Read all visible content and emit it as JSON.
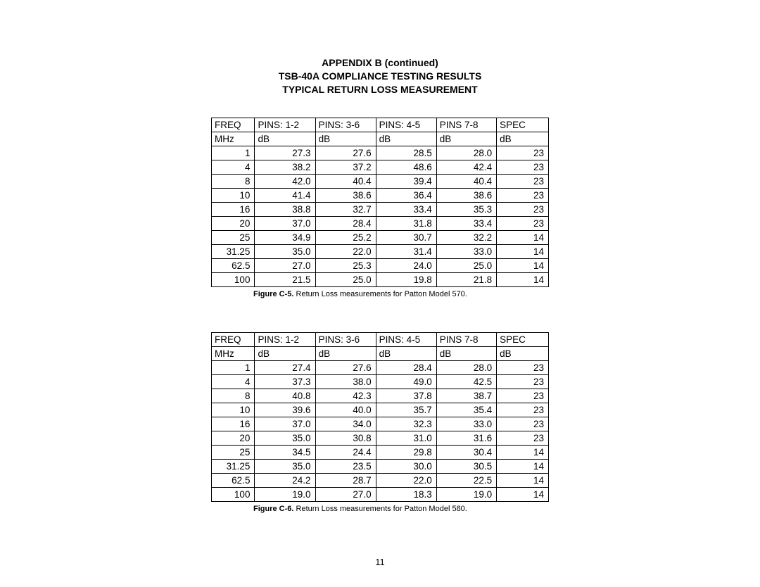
{
  "header": {
    "line1": "APPENDIX B (continued)",
    "line2": "TSB-40A COMPLIANCE TESTING RESULTS",
    "line3": "TYPICAL RETURN LOSS MEASUREMENT"
  },
  "table1": {
    "type": "table",
    "columns_row1": [
      "FREQ",
      "PINS: 1-2",
      "PINS: 3-6",
      "PINS: 4-5",
      "PINS 7-8",
      "SPEC"
    ],
    "columns_row2": [
      "MHz",
      "dB",
      "dB",
      "dB",
      "dB",
      "dB"
    ],
    "rows": [
      [
        "1",
        "27.3",
        "27.6",
        "28.5",
        "28.0",
        "23"
      ],
      [
        "4",
        "38.2",
        "37.2",
        "48.6",
        "42.4",
        "23"
      ],
      [
        "8",
        "42.0",
        "40.4",
        "39.4",
        "40.4",
        "23"
      ],
      [
        "10",
        "41.4",
        "38.6",
        "36.4",
        "38.6",
        "23"
      ],
      [
        "16",
        "38.8",
        "32.7",
        "33.4",
        "35.3",
        "23"
      ],
      [
        "20",
        "37.0",
        "28.4",
        "31.8",
        "33.4",
        "23"
      ],
      [
        "25",
        "34.9",
        "25.2",
        "30.7",
        "32.2",
        "14"
      ],
      [
        "31.25",
        "35.0",
        "22.0",
        "31.4",
        "33.0",
        "14"
      ],
      [
        "62.5",
        "27.0",
        "25.3",
        "24.0",
        "25.0",
        "14"
      ],
      [
        "100",
        "21.5",
        "25.0",
        "19.8",
        "21.8",
        "14"
      ]
    ],
    "caption_bold": "Figure C-5.",
    "caption_rest": "  Return Loss measurements for Patton Model 570."
  },
  "table2": {
    "type": "table",
    "columns_row1": [
      "FREQ",
      "PINS: 1-2",
      "PINS: 3-6",
      "PINS: 4-5",
      "PINS 7-8",
      "SPEC"
    ],
    "columns_row2": [
      "MHz",
      "dB",
      "dB",
      "dB",
      "dB",
      "dB"
    ],
    "rows": [
      [
        "1",
        "27.4",
        "27.6",
        "28.4",
        "28.0",
        "23"
      ],
      [
        "4",
        "37.3",
        "38.0",
        "49.0",
        "42.5",
        "23"
      ],
      [
        "8",
        "40.8",
        "42.3",
        "37.8",
        "38.7",
        "23"
      ],
      [
        "10",
        "39.6",
        "40.0",
        "35.7",
        "35.4",
        "23"
      ],
      [
        "16",
        "37.0",
        "34.0",
        "32.3",
        "33.0",
        "23"
      ],
      [
        "20",
        "35.0",
        "30.8",
        "31.0",
        "31.6",
        "23"
      ],
      [
        "25",
        "34.5",
        "24.4",
        "29.8",
        "30.4",
        "14"
      ],
      [
        "31.25",
        "35.0",
        "23.5",
        "30.0",
        "30.5",
        "14"
      ],
      [
        "62.5",
        "24.2",
        "28.7",
        "22.0",
        "22.5",
        "14"
      ],
      [
        "100",
        "19.0",
        "27.0",
        "18.3",
        "19.0",
        "14"
      ]
    ],
    "caption_bold": "Figure C-6.",
    "caption_rest": "  Return Loss measurements for Patton Model 580."
  },
  "page_number": "11",
  "style": {
    "background_color": "#ffffff",
    "text_color": "#000000",
    "border_color": "#000000",
    "header_fontsize": 14,
    "body_fontsize": 13.5,
    "caption_fontsize": 11,
    "font_family": "Arial"
  }
}
